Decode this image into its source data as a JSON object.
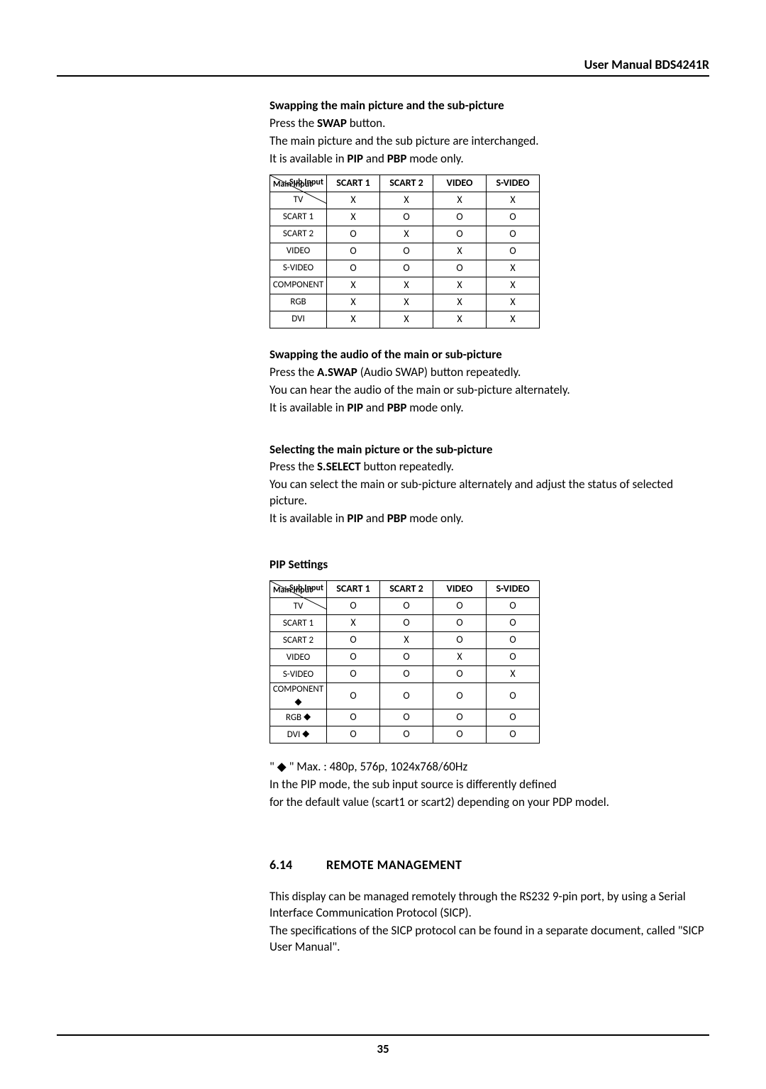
{
  "header": {
    "title": "User Manual BDS4241R"
  },
  "footer": {
    "page_number": "35"
  },
  "sec1": {
    "heading": "Swapping the main picture and the sub-picture",
    "l1a": "Press the ",
    "l1b": "SWAP",
    "l1c": " button.",
    "l2": "The main picture and the sub picture are interchanged.",
    "l3a": "It is available in ",
    "l3b": "PIP",
    "l3c": " and ",
    "l3d": "PBP",
    "l3e": " mode only."
  },
  "table1": {
    "diag_top": "Sub Input",
    "diag_bot": "Main Input",
    "columns": [
      "SCART 1",
      "SCART 2",
      "VIDEO",
      "S-VIDEO"
    ],
    "rows": [
      {
        "label": "TV",
        "cells": [
          "X",
          "X",
          "X",
          "X"
        ]
      },
      {
        "label": "SCART 1",
        "cells": [
          "X",
          "O",
          "O",
          "O"
        ]
      },
      {
        "label": "SCART 2",
        "cells": [
          "O",
          "X",
          "O",
          "O"
        ]
      },
      {
        "label": "VIDEO",
        "cells": [
          "O",
          "O",
          "X",
          "O"
        ]
      },
      {
        "label": "S-VIDEO",
        "cells": [
          "O",
          "O",
          "O",
          "X"
        ]
      },
      {
        "label": "COMPONENT",
        "cells": [
          "X",
          "X",
          "X",
          "X"
        ]
      },
      {
        "label": "RGB",
        "cells": [
          "X",
          "X",
          "X",
          "X"
        ]
      },
      {
        "label": "DVI",
        "cells": [
          "X",
          "X",
          "X",
          "X"
        ]
      }
    ]
  },
  "sec2": {
    "heading": "Swapping the audio of the main or sub-picture",
    "l1a": "Press the ",
    "l1b": "A.SWAP",
    "l1c": " (Audio SWAP) button repeatedly.",
    "l2": "You can hear the audio of the main or sub-picture alternately.",
    "l3a": "It is available in ",
    "l3b": "PIP",
    "l3c": " and ",
    "l3d": "PBP",
    "l3e": " mode only."
  },
  "sec3": {
    "heading": "Selecting the main picture or the sub-picture",
    "l1a": "Press the ",
    "l1b": "S.SELECT",
    "l1c": " button repeatedly.",
    "l2": "You can select the main or sub-picture alternately and adjust the status of selected picture.",
    "l3a": "It is available in ",
    "l3b": "PIP",
    "l3c": " and ",
    "l3d": "PBP",
    "l3e": " mode only."
  },
  "sec4": {
    "heading": "PIP Settings"
  },
  "table2": {
    "diag_top": "Sub Input",
    "diag_bot": "Main Input",
    "columns": [
      "SCART 1",
      "SCART 2",
      "VIDEO",
      "S-VIDEO"
    ],
    "rows": [
      {
        "label": "TV",
        "diamond": false,
        "cells": [
          "O",
          "O",
          "O",
          "O"
        ]
      },
      {
        "label": "SCART 1",
        "diamond": false,
        "cells": [
          "X",
          "O",
          "O",
          "O"
        ]
      },
      {
        "label": "SCART 2",
        "diamond": false,
        "cells": [
          "O",
          "X",
          "O",
          "O"
        ]
      },
      {
        "label": "VIDEO",
        "diamond": false,
        "cells": [
          "O",
          "O",
          "X",
          "O"
        ]
      },
      {
        "label": "S-VIDEO",
        "diamond": false,
        "cells": [
          "O",
          "O",
          "O",
          "X"
        ]
      },
      {
        "label": "COMPONENT ",
        "diamond": true,
        "cells": [
          "O",
          "O",
          "O",
          "O"
        ]
      },
      {
        "label": "RGB ",
        "diamond": true,
        "cells": [
          "O",
          "O",
          "O",
          "O"
        ]
      },
      {
        "label": "DVI ",
        "diamond": true,
        "cells": [
          "O",
          "O",
          "O",
          "O"
        ]
      }
    ]
  },
  "note": {
    "l1": "\" ◆ \" Max. : 480p, 576p, 1024x768/60Hz",
    "l2": "In the PIP mode, the sub input source is differently defined",
    "l3": "for the default value (scart1 or scart2) depending on your PDP model."
  },
  "sec5": {
    "num": "6.14",
    "title": "REMOTE MANAGEMENT",
    "p1": "This display can be managed remotely through the RS232 9-pin port, by using a Serial Interface Communication Protocol (SICP).",
    "p2": "The specifications of the SICP protocol can be found in a separate document, called \"SICP User Manual\"."
  }
}
